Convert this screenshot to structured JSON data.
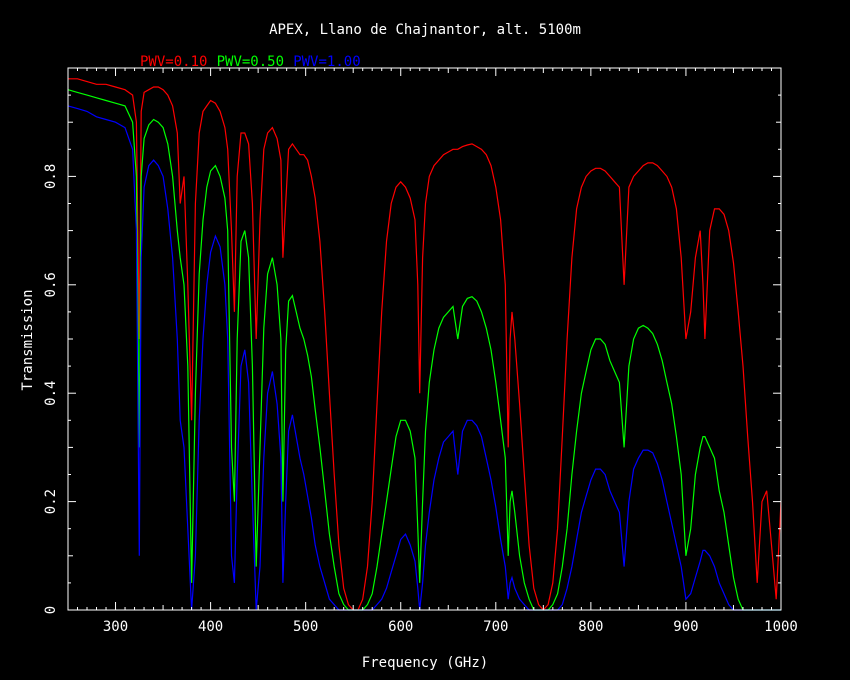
{
  "chart_data": {
    "type": "line",
    "title": "APEX, Llano de Chajnantor, alt. 5100m",
    "xlabel": "Frequency (GHz)",
    "ylabel": "Transmission",
    "xlim": [
      250,
      1000
    ],
    "ylim": [
      0,
      1
    ],
    "grid": false,
    "legend_position": "top-left",
    "x_ticks": [
      "300",
      "400",
      "500",
      "600",
      "700",
      "800",
      "900",
      "1000"
    ],
    "y_ticks": [
      "0",
      "0.2",
      "0.4",
      "0.6",
      "0.8"
    ],
    "x": [
      250,
      260,
      270,
      280,
      290,
      300,
      310,
      318,
      322,
      325,
      327,
      330,
      335,
      340,
      345,
      350,
      355,
      360,
      365,
      368,
      372,
      376,
      380,
      384,
      388,
      392,
      396,
      400,
      405,
      410,
      415,
      418,
      422,
      425,
      428,
      432,
      436,
      440,
      444,
      448,
      452,
      456,
      460,
      465,
      470,
      474,
      476,
      479,
      482,
      486,
      490,
      494,
      498,
      502,
      506,
      510,
      515,
      520,
      525,
      530,
      535,
      540,
      545,
      550,
      555,
      560,
      565,
      570,
      575,
      580,
      585,
      590,
      595,
      600,
      605,
      610,
      615,
      618,
      620,
      623,
      626,
      630,
      635,
      640,
      645,
      650,
      655,
      660,
      665,
      670,
      675,
      680,
      685,
      690,
      695,
      700,
      705,
      710,
      713,
      715,
      717,
      720,
      725,
      730,
      735,
      740,
      745,
      750,
      755,
      760,
      765,
      770,
      775,
      780,
      785,
      790,
      795,
      800,
      805,
      810,
      815,
      820,
      825,
      830,
      835,
      840,
      845,
      850,
      855,
      860,
      865,
      870,
      875,
      880,
      885,
      890,
      895,
      900,
      905,
      910,
      915,
      918,
      920,
      925,
      930,
      935,
      940,
      945,
      950,
      955,
      960,
      965,
      970,
      975,
      980,
      985,
      990,
      995,
      1000
    ],
    "series": [
      {
        "name": "PWV=0.10",
        "color": "#ff0000",
        "values": [
          0.98,
          0.98,
          0.975,
          0.97,
          0.97,
          0.965,
          0.96,
          0.95,
          0.9,
          0.5,
          0.92,
          0.955,
          0.96,
          0.965,
          0.965,
          0.96,
          0.95,
          0.93,
          0.88,
          0.75,
          0.8,
          0.6,
          0.35,
          0.75,
          0.88,
          0.92,
          0.93,
          0.94,
          0.935,
          0.92,
          0.89,
          0.85,
          0.7,
          0.55,
          0.8,
          0.88,
          0.88,
          0.86,
          0.75,
          0.5,
          0.72,
          0.85,
          0.88,
          0.89,
          0.87,
          0.83,
          0.65,
          0.75,
          0.85,
          0.86,
          0.85,
          0.84,
          0.84,
          0.83,
          0.8,
          0.76,
          0.68,
          0.55,
          0.4,
          0.25,
          0.12,
          0.04,
          0.01,
          0.0,
          0.0,
          0.02,
          0.08,
          0.2,
          0.38,
          0.55,
          0.68,
          0.75,
          0.78,
          0.79,
          0.78,
          0.76,
          0.72,
          0.6,
          0.4,
          0.65,
          0.75,
          0.8,
          0.82,
          0.83,
          0.84,
          0.845,
          0.85,
          0.85,
          0.855,
          0.858,
          0.86,
          0.855,
          0.85,
          0.84,
          0.82,
          0.78,
          0.72,
          0.6,
          0.3,
          0.5,
          0.55,
          0.5,
          0.38,
          0.25,
          0.12,
          0.04,
          0.01,
          0.0,
          0.01,
          0.05,
          0.15,
          0.32,
          0.5,
          0.65,
          0.74,
          0.78,
          0.8,
          0.81,
          0.815,
          0.815,
          0.81,
          0.8,
          0.79,
          0.78,
          0.6,
          0.78,
          0.8,
          0.81,
          0.82,
          0.825,
          0.825,
          0.82,
          0.81,
          0.8,
          0.78,
          0.74,
          0.65,
          0.5,
          0.55,
          0.65,
          0.7,
          0.6,
          0.5,
          0.7,
          0.74,
          0.74,
          0.73,
          0.7,
          0.64,
          0.55,
          0.45,
          0.32,
          0.2,
          0.05,
          0.2,
          0.22,
          0.12,
          0.02,
          0.2
        ]
      },
      {
        "name": "PWV=0.50",
        "color": "#00ff00",
        "values": [
          0.96,
          0.955,
          0.95,
          0.945,
          0.94,
          0.935,
          0.93,
          0.9,
          0.8,
          0.3,
          0.8,
          0.87,
          0.895,
          0.905,
          0.9,
          0.89,
          0.86,
          0.8,
          0.7,
          0.65,
          0.6,
          0.45,
          0.05,
          0.4,
          0.62,
          0.72,
          0.78,
          0.81,
          0.82,
          0.8,
          0.76,
          0.7,
          0.3,
          0.2,
          0.5,
          0.68,
          0.7,
          0.65,
          0.45,
          0.08,
          0.3,
          0.52,
          0.62,
          0.65,
          0.6,
          0.5,
          0.2,
          0.48,
          0.57,
          0.58,
          0.55,
          0.52,
          0.5,
          0.47,
          0.43,
          0.37,
          0.3,
          0.22,
          0.14,
          0.08,
          0.03,
          0.01,
          0.0,
          0.0,
          0.0,
          0.0,
          0.01,
          0.03,
          0.08,
          0.14,
          0.2,
          0.26,
          0.32,
          0.35,
          0.35,
          0.33,
          0.28,
          0.15,
          0.05,
          0.2,
          0.33,
          0.42,
          0.48,
          0.52,
          0.54,
          0.55,
          0.56,
          0.5,
          0.56,
          0.575,
          0.578,
          0.57,
          0.55,
          0.52,
          0.48,
          0.42,
          0.35,
          0.28,
          0.1,
          0.2,
          0.22,
          0.18,
          0.1,
          0.05,
          0.02,
          0.0,
          0.0,
          0.0,
          0.0,
          0.01,
          0.03,
          0.08,
          0.15,
          0.25,
          0.33,
          0.4,
          0.44,
          0.48,
          0.5,
          0.5,
          0.49,
          0.46,
          0.44,
          0.42,
          0.3,
          0.45,
          0.5,
          0.52,
          0.525,
          0.52,
          0.51,
          0.49,
          0.46,
          0.42,
          0.38,
          0.32,
          0.25,
          0.1,
          0.15,
          0.25,
          0.3,
          0.32,
          0.32,
          0.3,
          0.28,
          0.22,
          0.18,
          0.12,
          0.06,
          0.02,
          0.0,
          0.0,
          0.0,
          0.0,
          0.0,
          0.0,
          0.0,
          0.0,
          0.0
        ]
      },
      {
        "name": "PWV=1.00",
        "color": "#0000ff",
        "values": [
          0.93,
          0.925,
          0.92,
          0.91,
          0.905,
          0.9,
          0.89,
          0.85,
          0.7,
          0.1,
          0.65,
          0.78,
          0.82,
          0.83,
          0.82,
          0.8,
          0.74,
          0.65,
          0.5,
          0.35,
          0.3,
          0.15,
          0.0,
          0.1,
          0.35,
          0.5,
          0.6,
          0.66,
          0.69,
          0.67,
          0.6,
          0.5,
          0.1,
          0.05,
          0.25,
          0.45,
          0.48,
          0.42,
          0.2,
          0.0,
          0.08,
          0.28,
          0.4,
          0.44,
          0.38,
          0.28,
          0.05,
          0.2,
          0.33,
          0.36,
          0.32,
          0.28,
          0.25,
          0.21,
          0.17,
          0.12,
          0.08,
          0.05,
          0.02,
          0.01,
          0.0,
          0.0,
          0.0,
          0.0,
          0.0,
          0.0,
          0.0,
          0.0,
          0.01,
          0.02,
          0.04,
          0.07,
          0.1,
          0.13,
          0.14,
          0.12,
          0.09,
          0.04,
          0.0,
          0.05,
          0.12,
          0.18,
          0.24,
          0.28,
          0.31,
          0.32,
          0.33,
          0.25,
          0.33,
          0.35,
          0.35,
          0.34,
          0.32,
          0.28,
          0.24,
          0.19,
          0.13,
          0.08,
          0.02,
          0.05,
          0.06,
          0.04,
          0.02,
          0.01,
          0.0,
          0.0,
          0.0,
          0.0,
          0.0,
          0.0,
          0.0,
          0.01,
          0.04,
          0.08,
          0.13,
          0.18,
          0.21,
          0.24,
          0.26,
          0.26,
          0.25,
          0.22,
          0.2,
          0.18,
          0.08,
          0.2,
          0.26,
          0.28,
          0.295,
          0.295,
          0.29,
          0.27,
          0.24,
          0.2,
          0.16,
          0.12,
          0.08,
          0.02,
          0.03,
          0.06,
          0.09,
          0.11,
          0.11,
          0.1,
          0.08,
          0.05,
          0.03,
          0.01,
          0.0,
          0.0,
          0.0,
          0.0,
          0.0,
          0.0,
          0.0,
          0.0,
          0.0,
          0.0,
          0.0
        ]
      }
    ]
  }
}
